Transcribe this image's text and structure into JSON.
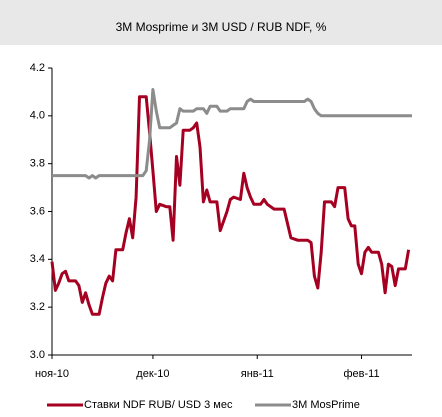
{
  "chart_data": {
    "type": "line",
    "title": "3M Mosprime и 3M USD / RUB NDF, %",
    "xlim": [
      0,
      107
    ],
    "xticks": [
      {
        "value": 0,
        "label": "ноя-10"
      },
      {
        "value": 30,
        "label": "дек-10"
      },
      {
        "value": 61,
        "label": "янв-11"
      },
      {
        "value": 92,
        "label": "фев-11"
      }
    ],
    "ylim": [
      3,
      4.2
    ],
    "yticks": [
      {
        "value": 3,
        "label": "3.0"
      },
      3.2,
      3.4,
      3.6,
      3.8,
      {
        "value": 4,
        "label": "4.0"
      },
      4.2
    ],
    "grid": false,
    "legend": "bottom",
    "series": [
      {
        "name": "Ставки NDF RUB/ USD 3 мес",
        "color": "#a50021",
        "x": [
          0,
          1,
          2,
          3,
          4,
          5,
          7,
          8,
          9,
          10,
          11,
          12,
          14,
          15,
          16,
          17,
          18,
          19,
          21,
          22,
          23,
          24,
          25,
          26,
          28,
          29,
          30,
          31,
          32,
          34,
          35,
          36,
          37,
          38,
          39,
          41,
          42,
          43,
          44,
          45,
          46,
          47,
          49,
          50,
          51,
          52,
          53,
          54,
          56,
          57,
          58,
          59,
          60,
          62,
          63,
          64,
          66,
          69,
          70,
          71,
          73,
          76,
          77,
          78,
          79,
          80,
          81,
          83,
          84,
          85,
          87,
          88,
          89,
          90,
          91,
          92,
          93,
          94,
          95,
          97,
          98,
          99,
          100,
          101,
          102,
          103,
          105,
          106
        ],
        "values": [
          3.39,
          3.27,
          3.3,
          3.34,
          3.35,
          3.31,
          3.31,
          3.29,
          3.22,
          3.26,
          3.21,
          3.17,
          3.17,
          3.24,
          3.3,
          3.33,
          3.31,
          3.44,
          3.44,
          3.51,
          3.57,
          3.49,
          3.66,
          4.08,
          4.08,
          3.93,
          3.77,
          3.6,
          3.63,
          3.62,
          3.62,
          3.48,
          3.83,
          3.71,
          3.94,
          3.94,
          3.95,
          3.97,
          3.87,
          3.64,
          3.69,
          3.64,
          3.64,
          3.52,
          3.56,
          3.6,
          3.65,
          3.66,
          3.65,
          3.76,
          3.7,
          3.66,
          3.63,
          3.63,
          3.65,
          3.63,
          3.61,
          3.61,
          3.55,
          3.49,
          3.48,
          3.48,
          3.47,
          3.33,
          3.28,
          3.43,
          3.64,
          3.64,
          3.62,
          3.7,
          3.7,
          3.57,
          3.54,
          3.54,
          3.38,
          3.34,
          3.43,
          3.45,
          3.43,
          3.43,
          3.38,
          3.26,
          3.38,
          3.37,
          3.29,
          3.36,
          3.36,
          3.44
        ]
      },
      {
        "name": "3M MosPrime",
        "color": "#8c8c8c",
        "x": [
          0,
          10,
          11,
          12,
          13,
          14,
          26,
          27,
          28,
          29,
          30,
          31,
          32,
          35,
          36,
          37,
          38,
          39,
          42,
          43,
          45,
          46,
          47,
          49,
          50,
          52,
          53,
          56,
          57,
          58,
          59,
          60,
          75,
          76,
          77,
          78,
          79,
          80,
          107
        ],
        "values": [
          3.75,
          3.75,
          3.74,
          3.75,
          3.74,
          3.75,
          3.75,
          3.75,
          3.77,
          3.9,
          4.11,
          4.02,
          3.95,
          3.95,
          3.96,
          3.97,
          4.03,
          4.02,
          4.02,
          4.03,
          4.03,
          4.01,
          4.04,
          4.04,
          4.02,
          4.02,
          4.03,
          4.03,
          4.03,
          4.06,
          4.07,
          4.06,
          4.06,
          4.07,
          4.06,
          4.03,
          4.01,
          4.0,
          4.0
        ]
      }
    ]
  }
}
